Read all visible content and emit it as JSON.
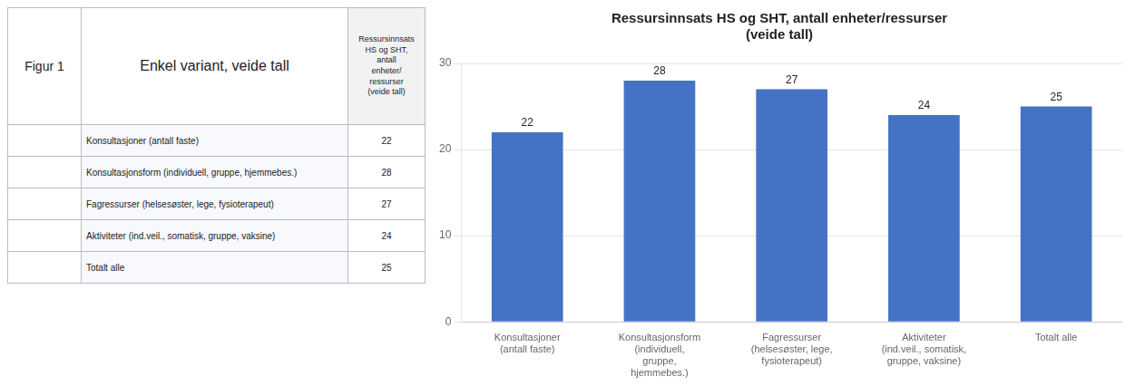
{
  "chart_data": [
    {
      "type": "table",
      "annotations": [
        "Figur 1",
        "Enkel variant, veide tall",
        "Ressursinnsats\nHS og SHT,\nantall\nenheter/\nressurser\n(veide tall)"
      ],
      "categories": [
        "Konsultasjoner (antall faste)",
        "Konsultasjonsform (individuell, gruppe, hjemmebes.)",
        "Fagressurser (helsesøster, lege, fysioterapeut)",
        "Aktiviteter (ind.veil., somatisk, gruppe, vaksine)",
        "Totalt alle"
      ],
      "values": [
        22,
        28,
        27,
        24,
        25
      ]
    },
    {
      "type": "bar",
      "title": "Ressursinnsats HS og SHT, antall enheter/ressurser\n(veide tall)",
      "categories": [
        "Konsultasjoner\n(antall faste)",
        "Konsultasjonsform\n(individuell,\ngruppe,\nhjemmebes.)",
        "Fagressurser\n(helsesøster, lege,\nfysioterapeut)",
        "Aktiviteter\n(ind.veil., somatisk,\ngruppe, vaksine)",
        "Totalt alle"
      ],
      "values": [
        22,
        28,
        27,
        24,
        25
      ],
      "color": "#4472C4",
      "ylim": [
        0,
        30
      ],
      "yticks": [
        0,
        10,
        20,
        30
      ],
      "grid": true,
      "data_labels": true
    }
  ]
}
